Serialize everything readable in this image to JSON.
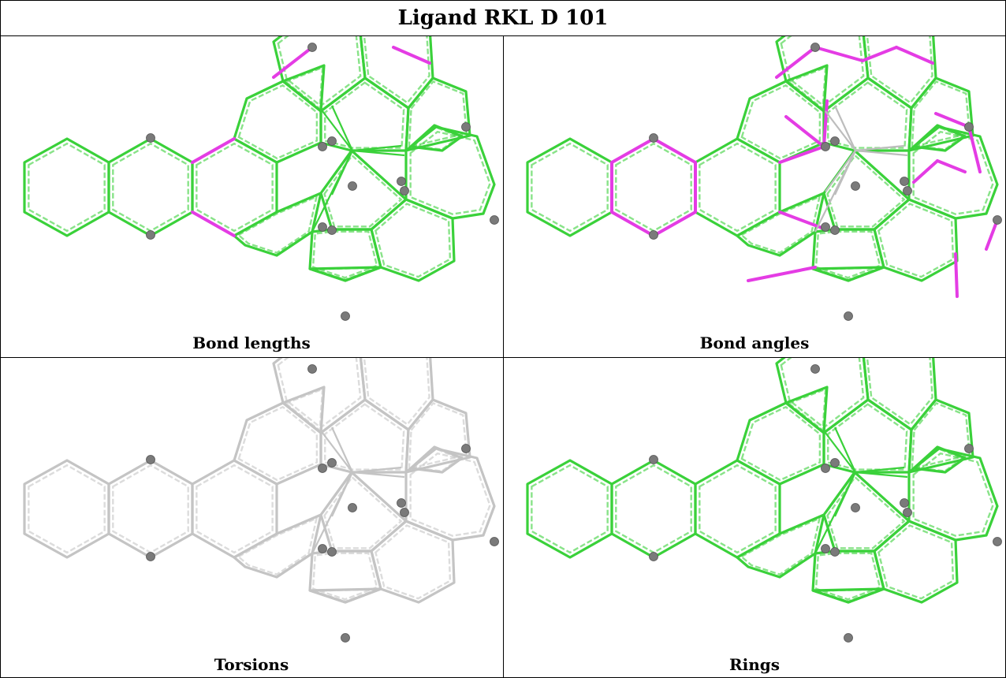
{
  "title": "Ligand RKL D 101",
  "panels": [
    {
      "id": "bond-lengths",
      "caption": "Bond lengths",
      "bond_color": "#3ad13a",
      "highlight_color": "#e43ce4",
      "mode": "lengths"
    },
    {
      "id": "bond-angles",
      "caption": "Bond angles",
      "bond_color": "#3ad13a",
      "highlight_color": "#e43ce4",
      "mode": "angles"
    },
    {
      "id": "torsions",
      "caption": "Torsions",
      "bond_color": "#c4c4c4",
      "highlight_color": "#c4c4c4",
      "mode": "plain"
    },
    {
      "id": "rings",
      "caption": "Rings",
      "bond_color": "#3ad13a",
      "highlight_color": "#3ad13a",
      "mode": "plain"
    }
  ],
  "colors": {
    "atom": "#7a7a7a",
    "metal_bond": "#bdbdbd"
  }
}
